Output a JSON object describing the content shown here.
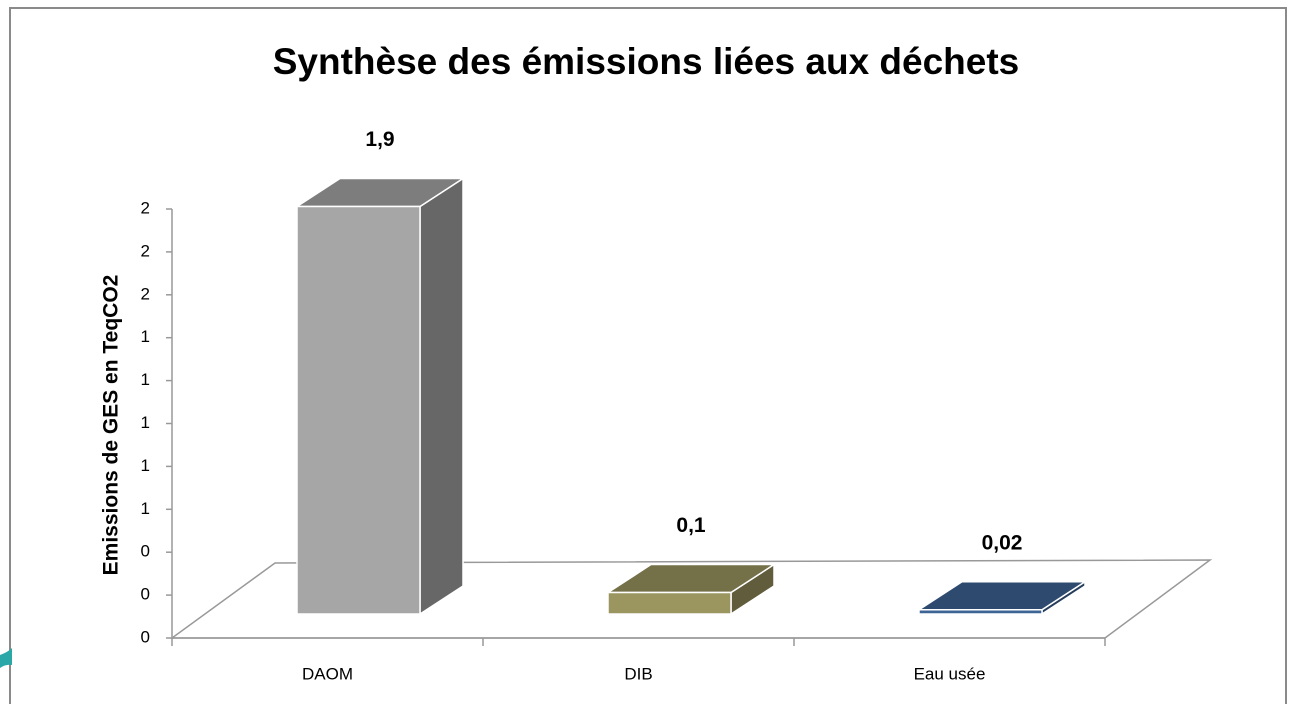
{
  "chart_data": {
    "type": "bar3d",
    "title": "Synthèse des émissions liées aux déchets",
    "y_label": "Emissions de GES en TeqCO2",
    "categories": [
      "DAOM",
      "DIB",
      "Eau usée"
    ],
    "values": [
      1.9,
      0.1,
      0.02
    ],
    "value_labels": [
      "1,9",
      "0,1",
      "0,02"
    ],
    "colors": [
      "#a6a6a6",
      "#9b9560",
      "#3d6494"
    ],
    "ylim": [
      0,
      2
    ],
    "yticks": [
      {
        "value": 0,
        "label": "0"
      },
      {
        "value": 0.2,
        "label": "0"
      },
      {
        "value": 0.4,
        "label": "0"
      },
      {
        "value": 0.6,
        "label": "1"
      },
      {
        "value": 0.8,
        "label": "1"
      },
      {
        "value": 1.0,
        "label": "1"
      },
      {
        "value": 1.2,
        "label": "1"
      },
      {
        "value": 1.4,
        "label": "1"
      },
      {
        "value": 1.6,
        "label": "2"
      },
      {
        "value": 1.8,
        "label": "2"
      },
      {
        "value": 2.0,
        "label": "2"
      }
    ]
  }
}
